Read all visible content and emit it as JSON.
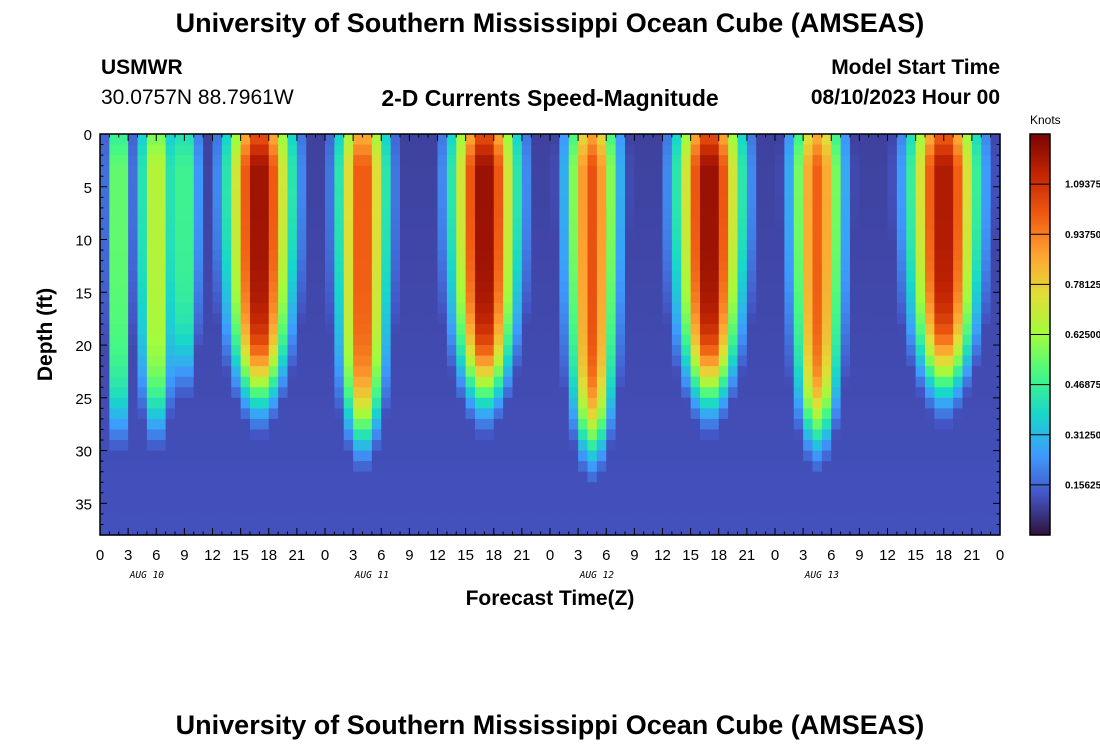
{
  "header": {
    "title": "University of Southern Mississippi Ocean Cube (AMSEAS)",
    "station": "USMWR",
    "location": "30.0757N  88.7961W",
    "subtitle": "2-D Currents Speed-Magnitude",
    "model_start_label": "Model Start Time",
    "model_start_value": "08/10/2023 Hour 00"
  },
  "footer": {
    "title": "University of Southern Mississippi Ocean Cube (AMSEAS)"
  },
  "chart_data": {
    "type": "heatmap",
    "title": "2-D Currents Speed-Magnitude",
    "xlabel": "Forecast Time(Z)",
    "ylabel": "Depth (ft)",
    "x_range_hours": [
      0,
      96
    ],
    "x_tick_labels": [
      "0",
      "3",
      "6",
      "9",
      "12",
      "15",
      "18",
      "21",
      "0",
      "3",
      "6",
      "9",
      "12",
      "15",
      "18",
      "21",
      "0",
      "3",
      "6",
      "9",
      "12",
      "15",
      "18",
      "21",
      "0",
      "3",
      "6",
      "9",
      "12",
      "15",
      "18",
      "21",
      "0"
    ],
    "day_labels": [
      "AUG 10",
      "AUG 11",
      "AUG 12",
      "AUG 13"
    ],
    "y_range_ft": [
      0,
      38
    ],
    "y_ticks": [
      0,
      5,
      10,
      15,
      20,
      25,
      30,
      35
    ],
    "colorbar": {
      "title": "Knots",
      "range": [
        0,
        1.25
      ],
      "tick_values": [
        0.15625,
        0.3125,
        0.46875,
        0.625,
        0.78125,
        0.9375,
        1.09375
      ],
      "tick_labels": [
        "0.15625",
        "0.31250",
        "0.46875",
        "0.62500",
        "0.78125",
        "0.93750",
        "1.09375"
      ]
    },
    "peaks": [
      {
        "hour": 2.0,
        "speed": 0.62,
        "halfwidth": 1.4,
        "bottom_ft": 28
      },
      {
        "hour": 6.0,
        "speed": 0.7,
        "halfwidth": 2.2,
        "bottom_ft": 27
      },
      {
        "hour": 9.0,
        "speed": 0.52,
        "halfwidth": 1.8,
        "bottom_ft": 23
      },
      {
        "hour": 17.0,
        "speed": 1.21,
        "halfwidth": 3.6,
        "bottom_ft": 24
      },
      {
        "hour": 28.0,
        "speed": 1.03,
        "halfwidth": 2.8,
        "bottom_ft": 28
      },
      {
        "hour": 41.0,
        "speed": 1.22,
        "halfwidth": 3.6,
        "bottom_ft": 24
      },
      {
        "hour": 52.5,
        "speed": 1.02,
        "halfwidth": 2.8,
        "bottom_ft": 29
      },
      {
        "hour": 65.0,
        "speed": 1.22,
        "halfwidth": 3.6,
        "bottom_ft": 24
      },
      {
        "hour": 76.5,
        "speed": 0.99,
        "halfwidth": 2.8,
        "bottom_ft": 28
      },
      {
        "hour": 90.0,
        "speed": 1.18,
        "halfwidth": 3.8,
        "bottom_ft": 23
      }
    ],
    "background_speed": 0.12
  }
}
